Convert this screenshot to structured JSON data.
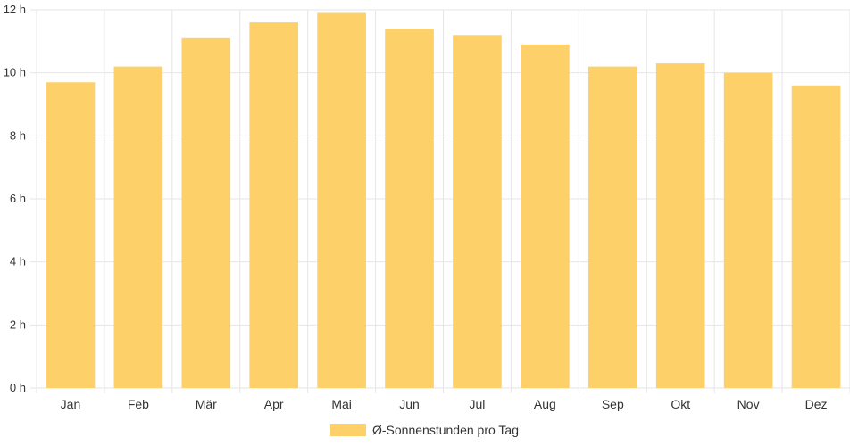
{
  "chart_data": {
    "type": "bar",
    "categories": [
      "Jan",
      "Feb",
      "Mär",
      "Apr",
      "Mai",
      "Jun",
      "Jul",
      "Aug",
      "Sep",
      "Okt",
      "Nov",
      "Dez"
    ],
    "series": [
      {
        "name": "Ø-Sonnenstunden pro Tag",
        "values": [
          9.7,
          10.2,
          11.1,
          11.6,
          11.9,
          11.4,
          11.2,
          10.9,
          10.2,
          10.3,
          10.0,
          9.6
        ]
      }
    ],
    "yticks": [
      "0 h",
      "2 h",
      "4 h",
      "6 h",
      "8 h",
      "10 h",
      "12 h"
    ],
    "ylim": [
      0,
      12
    ],
    "grid": true,
    "legend_position": "bottom",
    "colors": {
      "bar": "#fed069",
      "grid": "#e6e6e6",
      "text": "#333333"
    }
  }
}
